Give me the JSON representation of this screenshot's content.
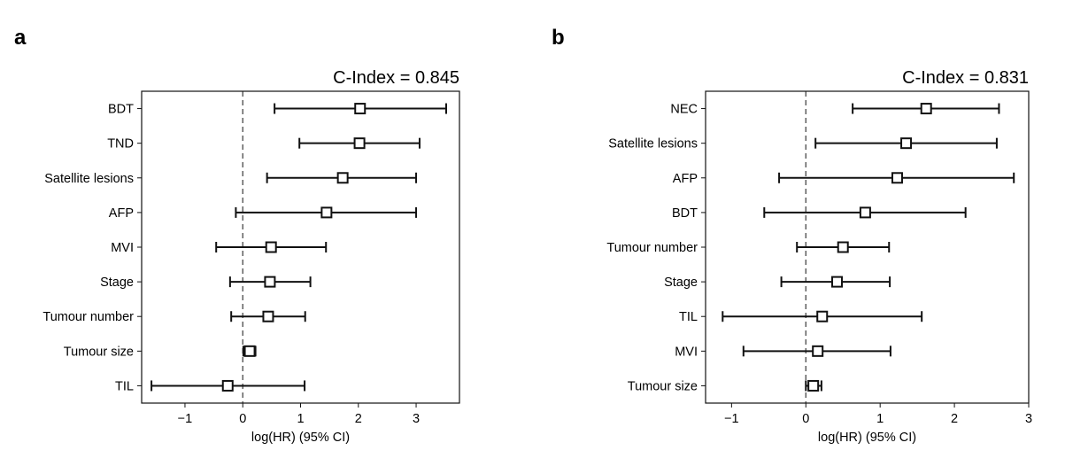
{
  "chart_data": [
    {
      "type": "forest",
      "panel_label": "a",
      "title": "C-Index = 0.845",
      "xlabel": "log(HR) (95% CI)",
      "xlim": [
        -1.75,
        3.75
      ],
      "xticks": [
        -1,
        0,
        1,
        2,
        3
      ],
      "xtick_labels": [
        "−1",
        "0",
        "1",
        "2",
        "3"
      ],
      "reference_line": 0,
      "rows": [
        {
          "label": "BDT",
          "estimate": 2.03,
          "lower": 0.55,
          "upper": 3.52
        },
        {
          "label": "TND",
          "estimate": 2.02,
          "lower": 0.98,
          "upper": 3.06
        },
        {
          "label": "Satellite lesions",
          "estimate": 1.73,
          "lower": 0.42,
          "upper": 3.0
        },
        {
          "label": "AFP",
          "estimate": 1.45,
          "lower": -0.12,
          "upper": 3.0
        },
        {
          "label": "MVI",
          "estimate": 0.49,
          "lower": -0.46,
          "upper": 1.44
        },
        {
          "label": "Stage",
          "estimate": 0.47,
          "lower": -0.22,
          "upper": 1.17
        },
        {
          "label": "Tumour number",
          "estimate": 0.44,
          "lower": -0.2,
          "upper": 1.08
        },
        {
          "label": "Tumour size",
          "estimate": 0.12,
          "lower": 0.01,
          "upper": 0.22
        },
        {
          "label": "TIL",
          "estimate": -0.26,
          "lower": -1.58,
          "upper": 1.07
        }
      ]
    },
    {
      "type": "forest",
      "panel_label": "b",
      "title": "C-Index = 0.831",
      "xlabel": "log(HR) (95% CI)",
      "xlim": [
        -1.35,
        3.0
      ],
      "xticks": [
        -1,
        0,
        1,
        2,
        3
      ],
      "xtick_labels": [
        "−1",
        "0",
        "1",
        "2",
        "3"
      ],
      "reference_line": 0,
      "rows": [
        {
          "label": "NEC",
          "estimate": 1.62,
          "lower": 0.63,
          "upper": 2.6
        },
        {
          "label": "Satellite lesions",
          "estimate": 1.35,
          "lower": 0.13,
          "upper": 2.57
        },
        {
          "label": "AFP",
          "estimate": 1.23,
          "lower": -0.36,
          "upper": 2.8
        },
        {
          "label": "BDT",
          "estimate": 0.8,
          "lower": -0.56,
          "upper": 2.15
        },
        {
          "label": "Tumour number",
          "estimate": 0.5,
          "lower": -0.12,
          "upper": 1.12
        },
        {
          "label": "Stage",
          "estimate": 0.42,
          "lower": -0.33,
          "upper": 1.13
        },
        {
          "label": "TIL",
          "estimate": 0.22,
          "lower": -1.12,
          "upper": 1.56
        },
        {
          "label": "MVI",
          "estimate": 0.16,
          "lower": -0.84,
          "upper": 1.14
        },
        {
          "label": "Tumour size",
          "estimate": 0.1,
          "lower": 0.0,
          "upper": 0.21
        }
      ]
    }
  ]
}
